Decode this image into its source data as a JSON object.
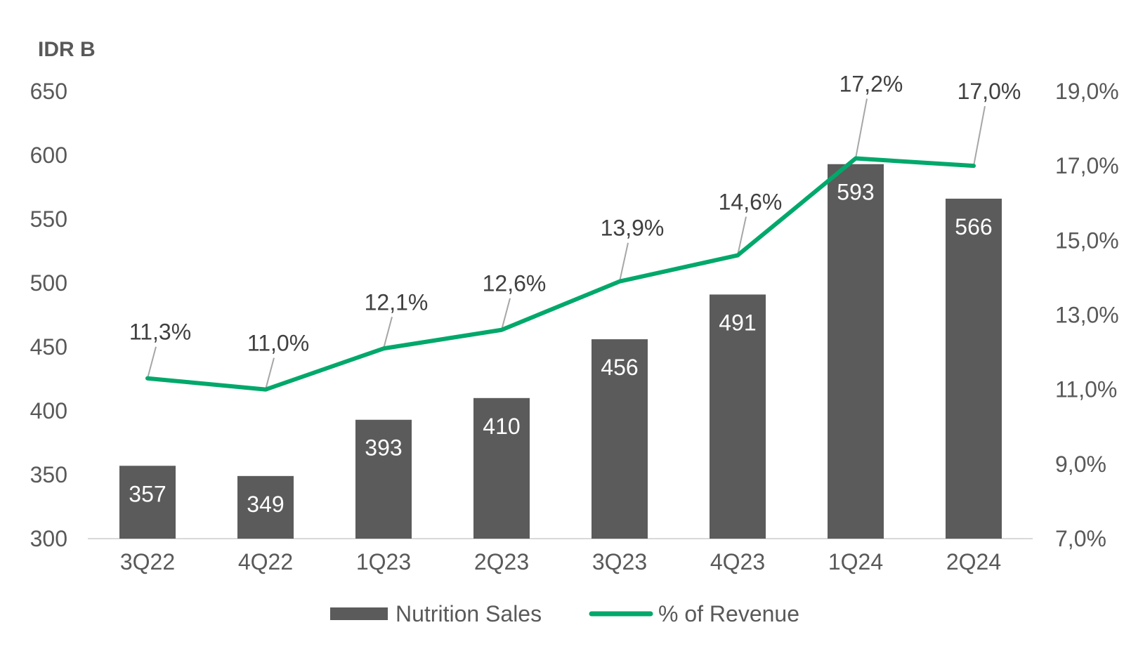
{
  "chart_data": {
    "type": "bar",
    "unit_label": "IDR B",
    "categories": [
      "3Q22",
      "4Q22",
      "1Q23",
      "2Q23",
      "3Q23",
      "4Q23",
      "1Q24",
      "2Q24"
    ],
    "series": [
      {
        "name": "Nutrition Sales",
        "type": "bar",
        "axis": "left",
        "values": [
          357,
          349,
          393,
          410,
          456,
          491,
          593,
          566
        ],
        "labels": [
          "357",
          "349",
          "393",
          "410",
          "456",
          "491",
          "593",
          "566"
        ],
        "color": "#5b5b5b"
      },
      {
        "name": "% of Revenue",
        "type": "line",
        "axis": "right",
        "values": [
          11.3,
          11.0,
          12.1,
          12.6,
          13.9,
          14.6,
          17.2,
          17.0
        ],
        "labels": [
          "11,3%",
          "11,0%",
          "12,1%",
          "12,6%",
          "13,9%",
          "14,6%",
          "17,2%",
          "17,0%"
        ],
        "color": "#00a86b"
      }
    ],
    "y_left": {
      "min": 300,
      "max": 650,
      "ticks": [
        "300",
        "350",
        "400",
        "450",
        "500",
        "550",
        "600",
        "650"
      ]
    },
    "y_right": {
      "min": 7.0,
      "max": 19.0,
      "ticks": [
        "7,0%",
        "9,0%",
        "11,0%",
        "13,0%",
        "15,0%",
        "17,0%",
        "19,0%"
      ]
    },
    "legend_position": "bottom",
    "grid": false,
    "leader_color": "#a6a6a6",
    "axis_color": "#d9d9d9"
  }
}
